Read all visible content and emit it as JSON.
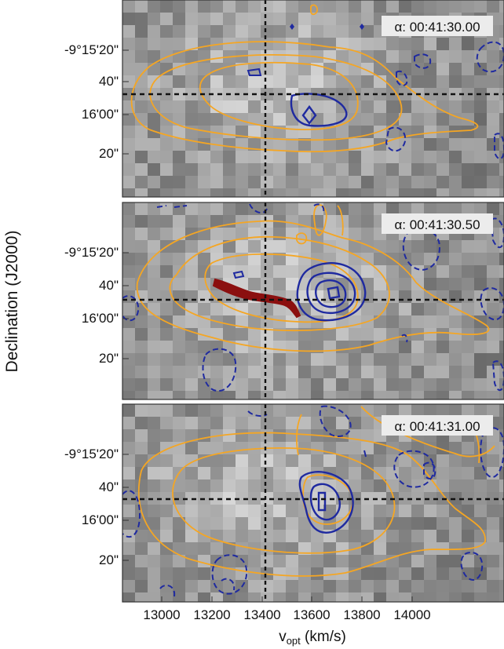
{
  "figure": {
    "y_axis_label": "Declination (J2000)",
    "x_axis_label_main": "v",
    "x_axis_label_sub": "opt",
    "x_axis_label_unit": " (km/s)",
    "x_ticks": [
      "13000",
      "13200",
      "13400",
      "13600",
      "13800",
      "14000"
    ],
    "y_ticks": [
      "-9°15'20\"",
      "40\"",
      "16'00\"",
      "20\""
    ]
  },
  "panels": [
    {
      "ra_label": "α: 00:41:30.00"
    },
    {
      "ra_label": "α: 00:41:30.50"
    },
    {
      "ra_label": "α: 00:41:31.00"
    }
  ],
  "colors": {
    "orange_contour": "#f5a623",
    "blue_contour": "#1f2aa0",
    "red_trace": "#8b0f0f",
    "crosshair": "#111111"
  }
}
